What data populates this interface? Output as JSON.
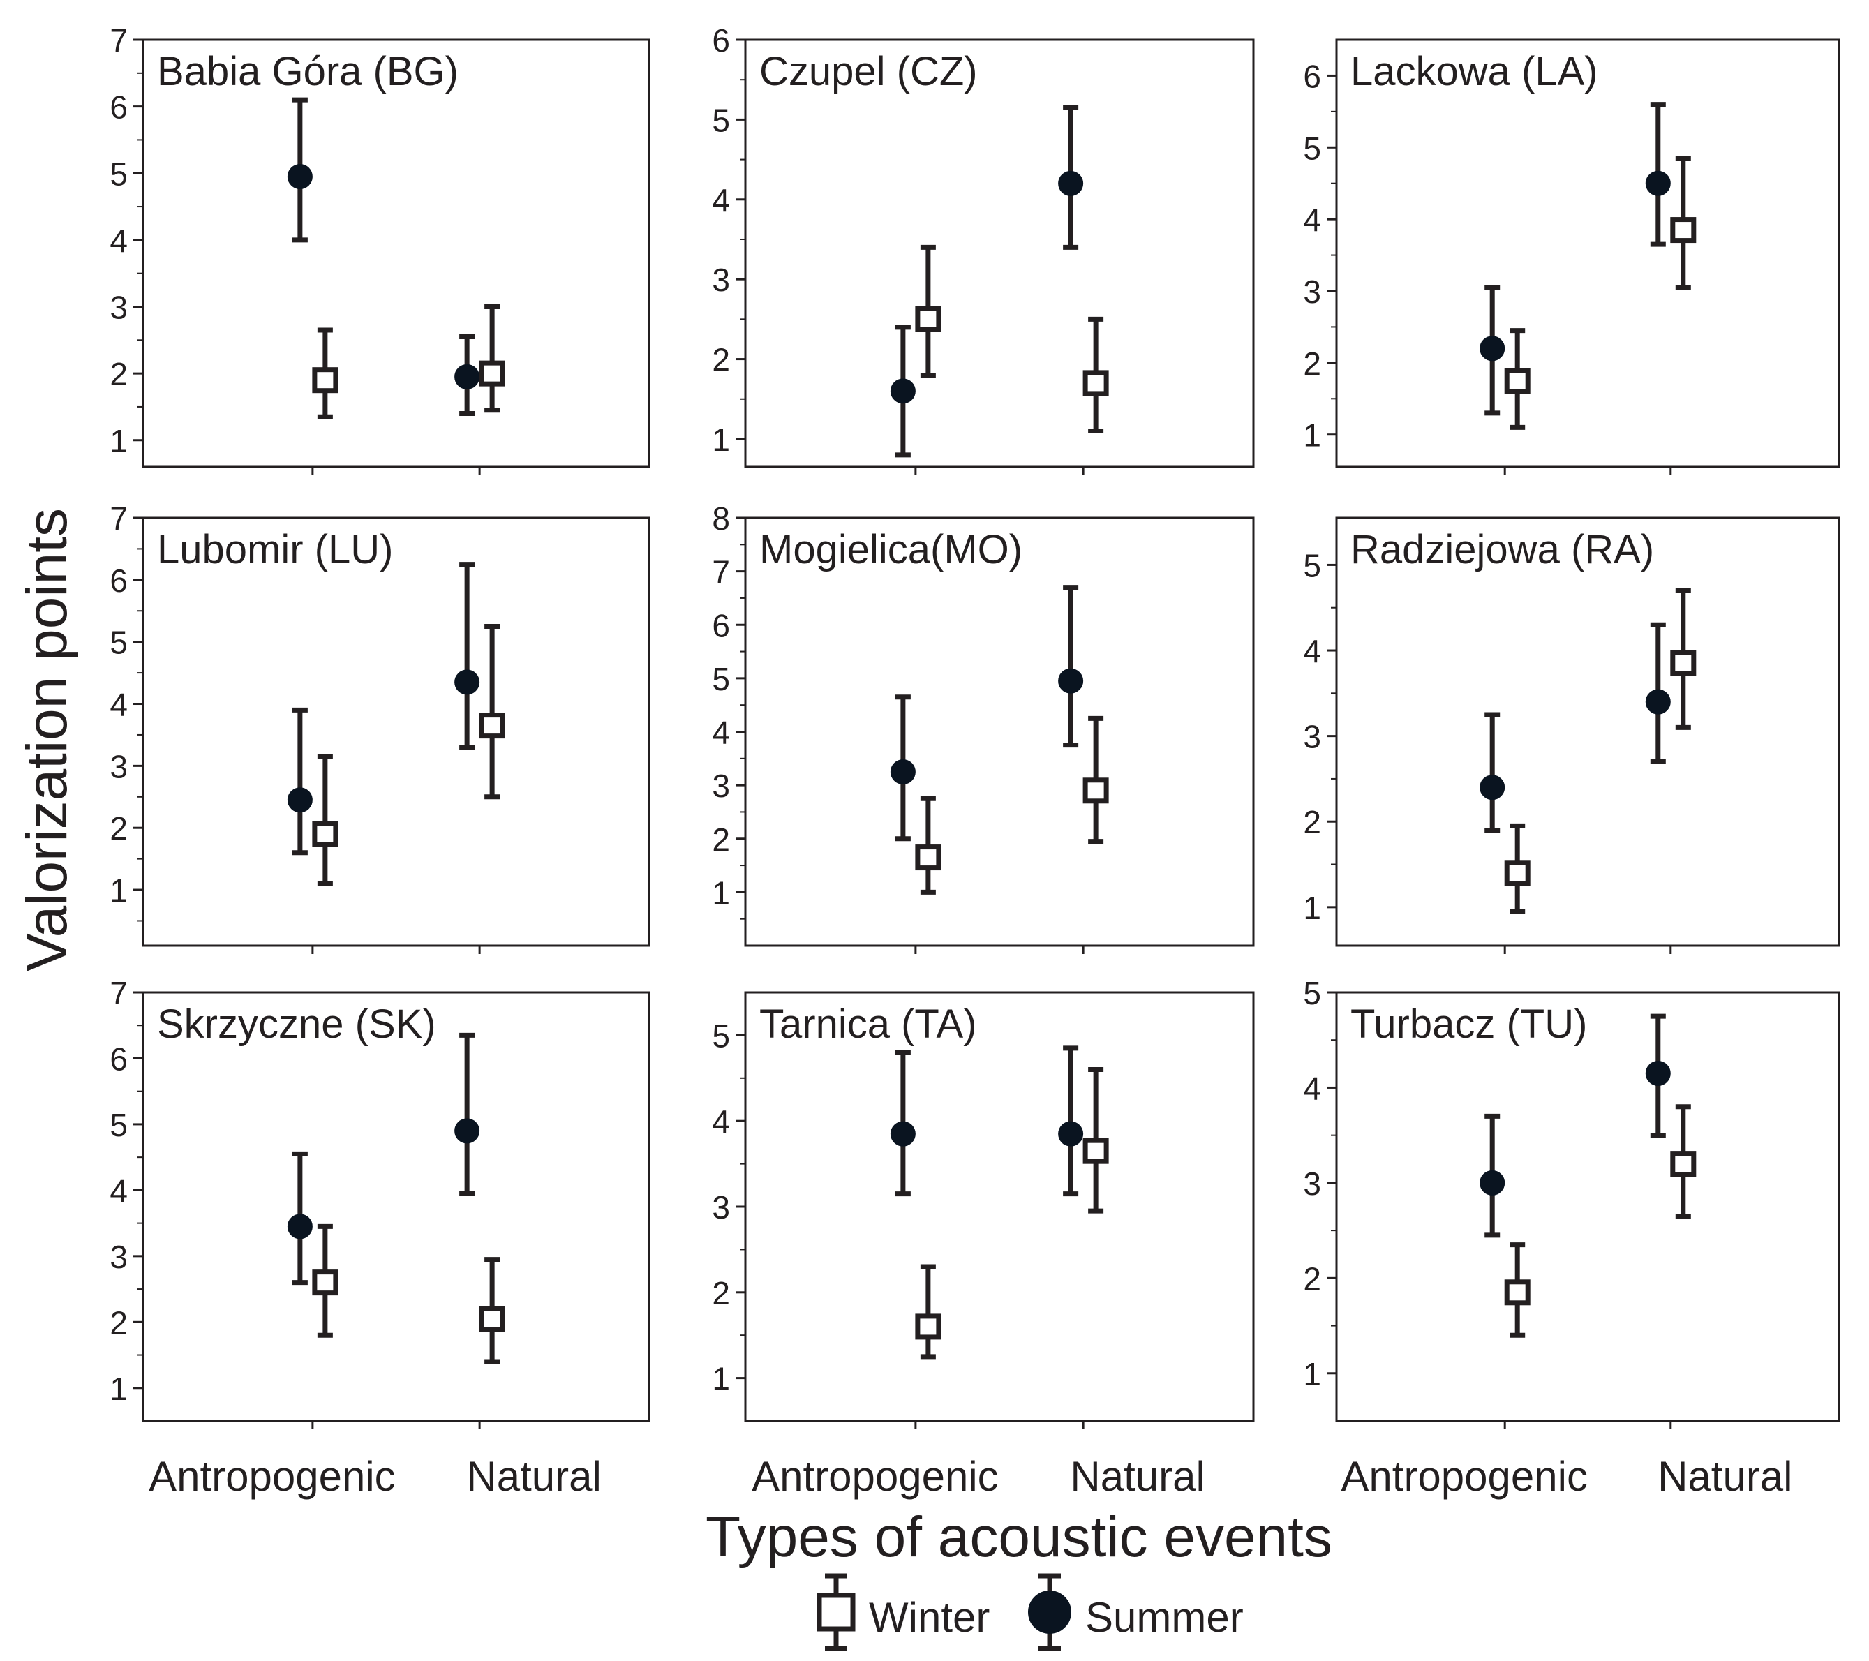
{
  "chart_data": {
    "type": "scatter",
    "subtype": "error-bar means by category and season",
    "ylabel": "Valorization points",
    "xlabel": "Types of acoustic events",
    "categories": [
      "Antropogenic",
      "Natural"
    ],
    "legend": [
      {
        "name": "Winter",
        "marker": "open-square"
      },
      {
        "name": "Summer",
        "marker": "filled-circle"
      }
    ],
    "legend_position": "bottom-center",
    "panels": [
      {
        "title": "Babia Góra (BG)",
        "ylim": [
          0.6,
          7
        ],
        "ticks": [
          1,
          2,
          3,
          4,
          5,
          6,
          7
        ],
        "series": [
          {
            "name": "Summer",
            "mean": [
              4.95,
              1.95
            ],
            "lower": [
              4.0,
              1.4
            ],
            "upper": [
              6.1,
              2.55
            ]
          },
          {
            "name": "Winter",
            "mean": [
              1.9,
              2.0
            ],
            "lower": [
              1.35,
              1.45
            ],
            "upper": [
              2.65,
              3.0
            ]
          }
        ]
      },
      {
        "title": "Czupel (CZ)",
        "ylim": [
          0.65,
          6
        ],
        "ticks": [
          1,
          2,
          3,
          4,
          5,
          6
        ],
        "series": [
          {
            "name": "Summer",
            "mean": [
              1.6,
              4.2
            ],
            "lower": [
              0.8,
              3.4
            ],
            "upper": [
              2.4,
              5.15
            ]
          },
          {
            "name": "Winter",
            "mean": [
              2.5,
              1.7
            ],
            "lower": [
              1.8,
              1.1
            ],
            "upper": [
              3.4,
              2.5
            ]
          }
        ]
      },
      {
        "title": "Lackowa (LA)",
        "ylim": [
          0.55,
          6.5
        ],
        "ticks": [
          1,
          2,
          3,
          4,
          5,
          6
        ],
        "series": [
          {
            "name": "Summer",
            "mean": [
              2.2,
              4.5
            ],
            "lower": [
              1.3,
              3.65
            ],
            "upper": [
              3.05,
              5.6
            ]
          },
          {
            "name": "Winter",
            "mean": [
              1.75,
              3.85
            ],
            "lower": [
              1.1,
              3.05
            ],
            "upper": [
              2.45,
              4.85
            ]
          }
        ]
      },
      {
        "title": "Lubomir (LU)",
        "ylim": [
          0.1,
          7
        ],
        "ticks": [
          1,
          2,
          3,
          4,
          5,
          6,
          7
        ],
        "series": [
          {
            "name": "Summer",
            "mean": [
              2.45,
              4.35
            ],
            "lower": [
              1.6,
              3.3
            ],
            "upper": [
              3.9,
              6.25
            ]
          },
          {
            "name": "Winter",
            "mean": [
              1.9,
              3.65
            ],
            "lower": [
              1.1,
              2.5
            ],
            "upper": [
              3.15,
              5.25
            ]
          }
        ]
      },
      {
        "title": "Mogielica(MO)",
        "ylim": [
          0.0,
          8
        ],
        "ticks": [
          1,
          2,
          3,
          4,
          5,
          6,
          7,
          8
        ],
        "series": [
          {
            "name": "Summer",
            "mean": [
              3.25,
              4.95
            ],
            "lower": [
              2.0,
              3.75
            ],
            "upper": [
              4.65,
              6.7
            ]
          },
          {
            "name": "Winter",
            "mean": [
              1.65,
              2.9
            ],
            "lower": [
              1.0,
              1.95
            ],
            "upper": [
              2.75,
              4.25
            ]
          }
        ]
      },
      {
        "title": "Radziejowa (RA)",
        "ylim": [
          0.55,
          5.55
        ],
        "ticks": [
          1,
          2,
          3,
          4,
          5
        ],
        "series": [
          {
            "name": "Summer",
            "mean": [
              2.4,
              3.4
            ],
            "lower": [
              1.9,
              2.7
            ],
            "upper": [
              3.25,
              4.3
            ]
          },
          {
            "name": "Winter",
            "mean": [
              1.4,
              3.85
            ],
            "lower": [
              0.95,
              3.1
            ],
            "upper": [
              1.95,
              4.7
            ]
          }
        ]
      },
      {
        "title": "Skrzyczne (SK)",
        "ylim": [
          0.5,
          7
        ],
        "ticks": [
          1,
          2,
          3,
          4,
          5,
          6,
          7
        ],
        "series": [
          {
            "name": "Summer",
            "mean": [
              3.45,
              4.9
            ],
            "lower": [
              2.6,
              3.95
            ],
            "upper": [
              4.55,
              6.35
            ]
          },
          {
            "name": "Winter",
            "mean": [
              2.6,
              2.05
            ],
            "lower": [
              1.8,
              1.4
            ],
            "upper": [
              3.45,
              2.95
            ]
          }
        ]
      },
      {
        "title": "Tarnica (TA)",
        "ylim": [
          0.5,
          5.5
        ],
        "ticks": [
          1,
          2,
          3,
          4,
          5
        ],
        "series": [
          {
            "name": "Summer",
            "mean": [
              3.85,
              3.85
            ],
            "lower": [
              3.15,
              3.15
            ],
            "upper": [
              4.8,
              4.85
            ]
          },
          {
            "name": "Winter",
            "mean": [
              1.6,
              3.65
            ],
            "lower": [
              1.25,
              2.95
            ],
            "upper": [
              2.3,
              4.6
            ]
          }
        ]
      },
      {
        "title": "Turbacz (TU)",
        "ylim": [
          0.5,
          5
        ],
        "ticks": [
          1,
          2,
          3,
          4,
          5
        ],
        "series": [
          {
            "name": "Summer",
            "mean": [
              3.0,
              4.15
            ],
            "lower": [
              2.45,
              3.5
            ],
            "upper": [
              3.7,
              4.75
            ]
          },
          {
            "name": "Winter",
            "mean": [
              1.85,
              3.2
            ],
            "lower": [
              1.4,
              2.65
            ],
            "upper": [
              2.35,
              3.8
            ]
          }
        ]
      }
    ]
  }
}
